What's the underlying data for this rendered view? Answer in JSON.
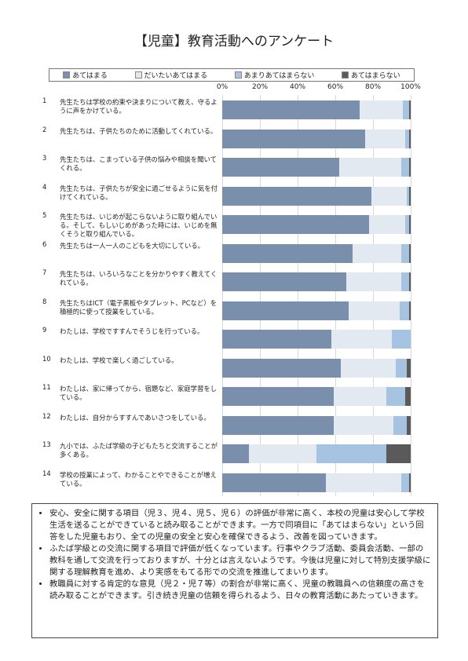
{
  "chart_data": {
    "type": "bar",
    "orientation": "horizontal",
    "stacked": true,
    "title": "【児童】教育活動へのアンケート",
    "category_numbers": [
      "1",
      "2",
      "3",
      "4",
      "5",
      "6",
      "7",
      "8",
      "9",
      "10",
      "11",
      "12",
      "13",
      "14"
    ],
    "categories": [
      "先生たちは学校の約束や決まりについて教え、守るように声をかけている。",
      "先生たちは、子供たちのために活動してくれている。",
      "先生たちは、こまっている子供の悩みや相談を聞いてくれる。",
      "先生たちは、子供たちが安全に過ごせるように気を付けてくれている。",
      "先生たちは、いじめが起こらないように取り組んでいる。そして、もしいじめがあった時には、いじめを無くそうと取り組んでいる。",
      "先生たちは一人一人のこどもを大切にしている。",
      "先生たちは、いろいろなことを分かりやすく教えてくれている。",
      "先生たちはICT（電子黒板やタブレット、PCなど）を積極的に使って授業をしている。",
      "わたしは、学校ですすんでそうじを行っている。",
      "わたしは、学校で楽しく過ごしている。",
      "わたしは、家に帰ってから、宿題など、家庭学習をしている。",
      "わたしは、自分からすすんであいさつをしている。",
      "九小では、ふたば学級の子どもたちと交流することが多くある。",
      "学校の授業によって、わかることやできることが増えている。"
    ],
    "series": [
      {
        "name": "あてはまる",
        "color": "#7a8fab",
        "values": [
          73,
          76,
          62,
          79,
          78,
          69,
          66,
          67,
          58,
          63,
          59,
          59,
          14,
          55
        ]
      },
      {
        "name": "だいたいあてはまる",
        "color": "#e3e9f0",
        "values": [
          23,
          21,
          33,
          19,
          19,
          26,
          29,
          27,
          32,
          29,
          28,
          32,
          36,
          40
        ]
      },
      {
        "name": "あまりあてはまらない",
        "color": "#a6c4e2",
        "values": [
          3,
          2,
          4,
          1,
          2,
          4,
          4,
          5,
          10,
          6,
          10,
          7,
          37,
          4
        ]
      },
      {
        "name": "あてはまらない",
        "color": "#5a5a5a",
        "values": [
          1,
          1,
          1,
          1,
          1,
          1,
          1,
          1,
          0,
          2,
          3,
          2,
          13,
          1
        ]
      }
    ],
    "xlim": [
      0,
      100
    ],
    "xticks": [
      {
        "value": 0,
        "label": "0%"
      },
      {
        "value": 20,
        "label": "20%"
      },
      {
        "value": 40,
        "label": "40%"
      },
      {
        "value": 60,
        "label": "60%"
      },
      {
        "value": 80,
        "label": "80%"
      },
      {
        "value": 100,
        "label": "100%"
      }
    ],
    "grid": true,
    "legend": "top"
  },
  "notes": [
    "安心、安全に関する項目（児３、児４、児５、児６）の評価が非常に高く、本校の児童は安心して学校生活を送ることができていると読み取ることができます。一方で同項目に「あてはまらない」という回答をした児童もおり、全ての児童の安全と安心を確保できるよう、改善を図っていきます。",
    "ふたば学級との交流に関する項目で評価が低くなっています。行事やクラブ活動、委員会活動、一部の教科を通して交流を行っておりますが、十分とは言えないようです。今後は児童に対して特別支援学級に関する理解教育を進め、より実感をもてる形での交流を推進してまいります。",
    "教職員に対する肯定的な意見（児２・児７等）の割合が非常に高く、児童の教職員への信頼度の高さを読み取ることができます。引き続き児童の信頼を得られるよう、日々の教育活動にあたっていきます。"
  ]
}
